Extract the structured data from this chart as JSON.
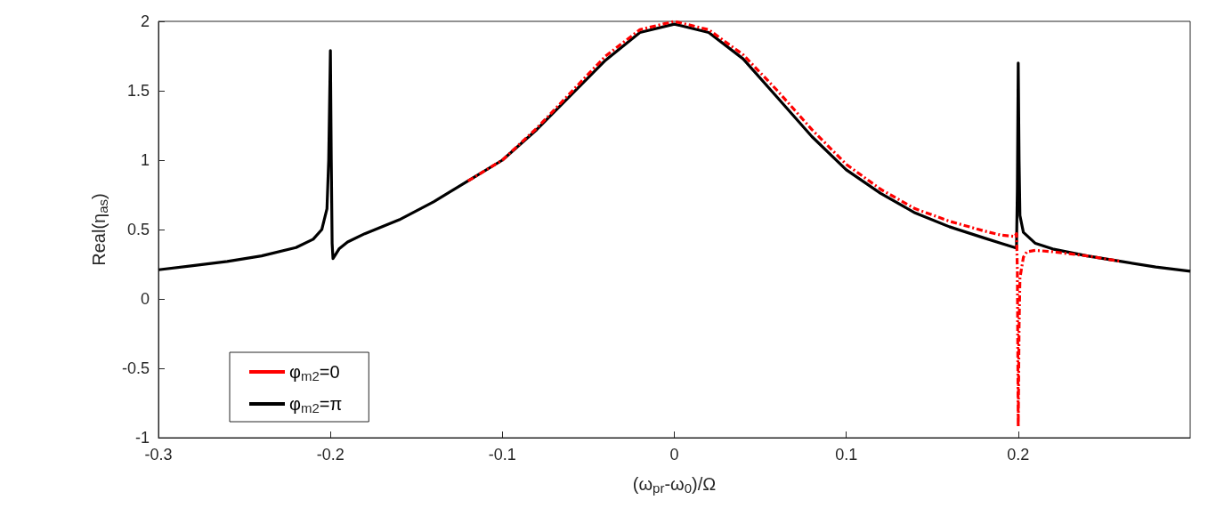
{
  "chart_data": {
    "type": "line",
    "xlabel": "(ω$_{pr}$-ω$_{0}$)/Ω",
    "ylabel": "Real(η$_{as}$)",
    "xlim": [
      -0.3,
      0.3
    ],
    "xticks": [
      -0.3,
      -0.2,
      -0.1,
      0,
      0.1,
      0.2
    ],
    "ylim": [
      -1,
      2
    ],
    "yticks": [
      -1,
      -0.5,
      0,
      0.5,
      1,
      1.5,
      2
    ],
    "grid": false,
    "legend": "bottom left",
    "marker": "none",
    "series": [
      {
        "name": "φ$_{m2}$=0",
        "color": "#ff0000",
        "line_style": "dashdot",
        "x": [
          -0.12,
          -0.1,
          -0.08,
          -0.06,
          -0.04,
          -0.02,
          0,
          0.02,
          0.04,
          0.06,
          0.08,
          0.1,
          0.12,
          0.14,
          0.16,
          0.18,
          0.19,
          0.198,
          0.199,
          0.1995,
          0.2,
          0.2005,
          0.201,
          0.203,
          0.205,
          0.21,
          0.22,
          0.24,
          0.26
        ],
        "values": [
          0.85,
          1.0,
          1.23,
          1.49,
          1.75,
          1.94,
          2.0,
          1.94,
          1.76,
          1.5,
          1.22,
          0.97,
          0.79,
          0.65,
          0.56,
          0.49,
          0.46,
          0.45,
          0.47,
          0.2,
          -0.92,
          -0.2,
          0.15,
          0.3,
          0.34,
          0.35,
          0.34,
          0.31,
          0.27
        ]
      },
      {
        "name": "φ$_{m2}$=π",
        "color": "#000000",
        "line_style": "solid",
        "x": [
          -0.3,
          -0.28,
          -0.26,
          -0.24,
          -0.22,
          -0.21,
          -0.205,
          -0.202,
          -0.201,
          -0.2,
          -0.1995,
          -0.199,
          -0.1985,
          -0.197,
          -0.195,
          -0.19,
          -0.18,
          -0.16,
          -0.14,
          -0.12,
          -0.1,
          -0.08,
          -0.06,
          -0.04,
          -0.02,
          0,
          0.02,
          0.04,
          0.06,
          0.08,
          0.1,
          0.12,
          0.14,
          0.16,
          0.18,
          0.19,
          0.198,
          0.199,
          0.1995,
          0.2,
          0.2005,
          0.201,
          0.203,
          0.21,
          0.22,
          0.24,
          0.26,
          0.28,
          0.3
        ],
        "values": [
          0.21,
          0.24,
          0.27,
          0.31,
          0.37,
          0.43,
          0.5,
          0.65,
          1.0,
          1.79,
          1.0,
          0.4,
          0.29,
          0.32,
          0.36,
          0.41,
          0.47,
          0.57,
          0.7,
          0.85,
          1.0,
          1.22,
          1.47,
          1.72,
          1.92,
          1.98,
          1.92,
          1.73,
          1.45,
          1.17,
          0.93,
          0.76,
          0.62,
          0.52,
          0.44,
          0.4,
          0.37,
          0.37,
          0.8,
          1.7,
          1.0,
          0.6,
          0.48,
          0.4,
          0.36,
          0.31,
          0.27,
          0.23,
          0.2
        ]
      }
    ]
  }
}
